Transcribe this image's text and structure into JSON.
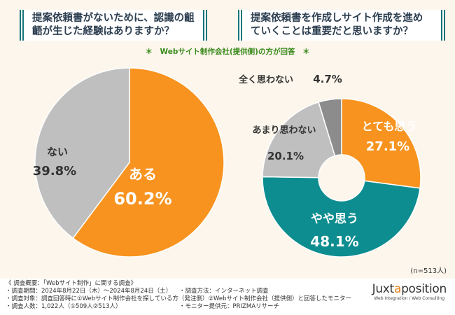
{
  "questions": {
    "left": "提案依頼書がないために、認識の齟齬が生じた経験はありますか？",
    "right": "提案依頼書を作成しサイト作成を進めていくことは重要だと思いますか？"
  },
  "note": "＊　Webサイト制作会社(提供側)の方が回答　＊",
  "n_label": "(n=513人)",
  "chart_data": [
    {
      "type": "pie",
      "title": "提案依頼書がないために、認識の齟齬が生じた経験はありますか？",
      "slices": [
        {
          "label": "ある",
          "value": 60.2,
          "value_label": "60.2%",
          "color": "#f7931e"
        },
        {
          "label": "ない",
          "value": 39.8,
          "value_label": "39.8%",
          "color": "#bfbfbf"
        }
      ]
    },
    {
      "type": "pie",
      "donut": true,
      "title": "提案依頼書を作成しサイト作成を進めていくことは重要だと思いますか？",
      "slices": [
        {
          "label": "とても思う",
          "value": 27.1,
          "value_label": "27.1%",
          "color": "#f7931e"
        },
        {
          "label": "やや思う",
          "value": 48.1,
          "value_label": "48.1%",
          "color": "#0e8d90"
        },
        {
          "label": "あまり思わない",
          "value": 20.1,
          "value_label": "20.1%",
          "color": "#bfbfbf"
        },
        {
          "label": "全く思わない",
          "value": 4.7,
          "value_label": "4.7%",
          "color": "#8c8c8c"
        }
      ]
    }
  ],
  "footer": {
    "title": "《 調査概要：「Webサイト制作」に関する調査》",
    "period": "・調査期間：2024年8月22日（木）～2024年8月24日（土）",
    "method": "・調査方法：インターネット調査",
    "target": "・調査対象：調査回答時に①Webサイト制作会社を探している方（発注側）②Webサイト制作会社（提供側）と回答したモニター",
    "count": "・調査人数：1,022人（①509人②513人）",
    "provider": "・モニター提供元：PRIZMAリサーチ"
  },
  "logo": {
    "name_a": "Juxta",
    "name_b": "position",
    "tagline": "Web Integration / Web Consulting"
  }
}
